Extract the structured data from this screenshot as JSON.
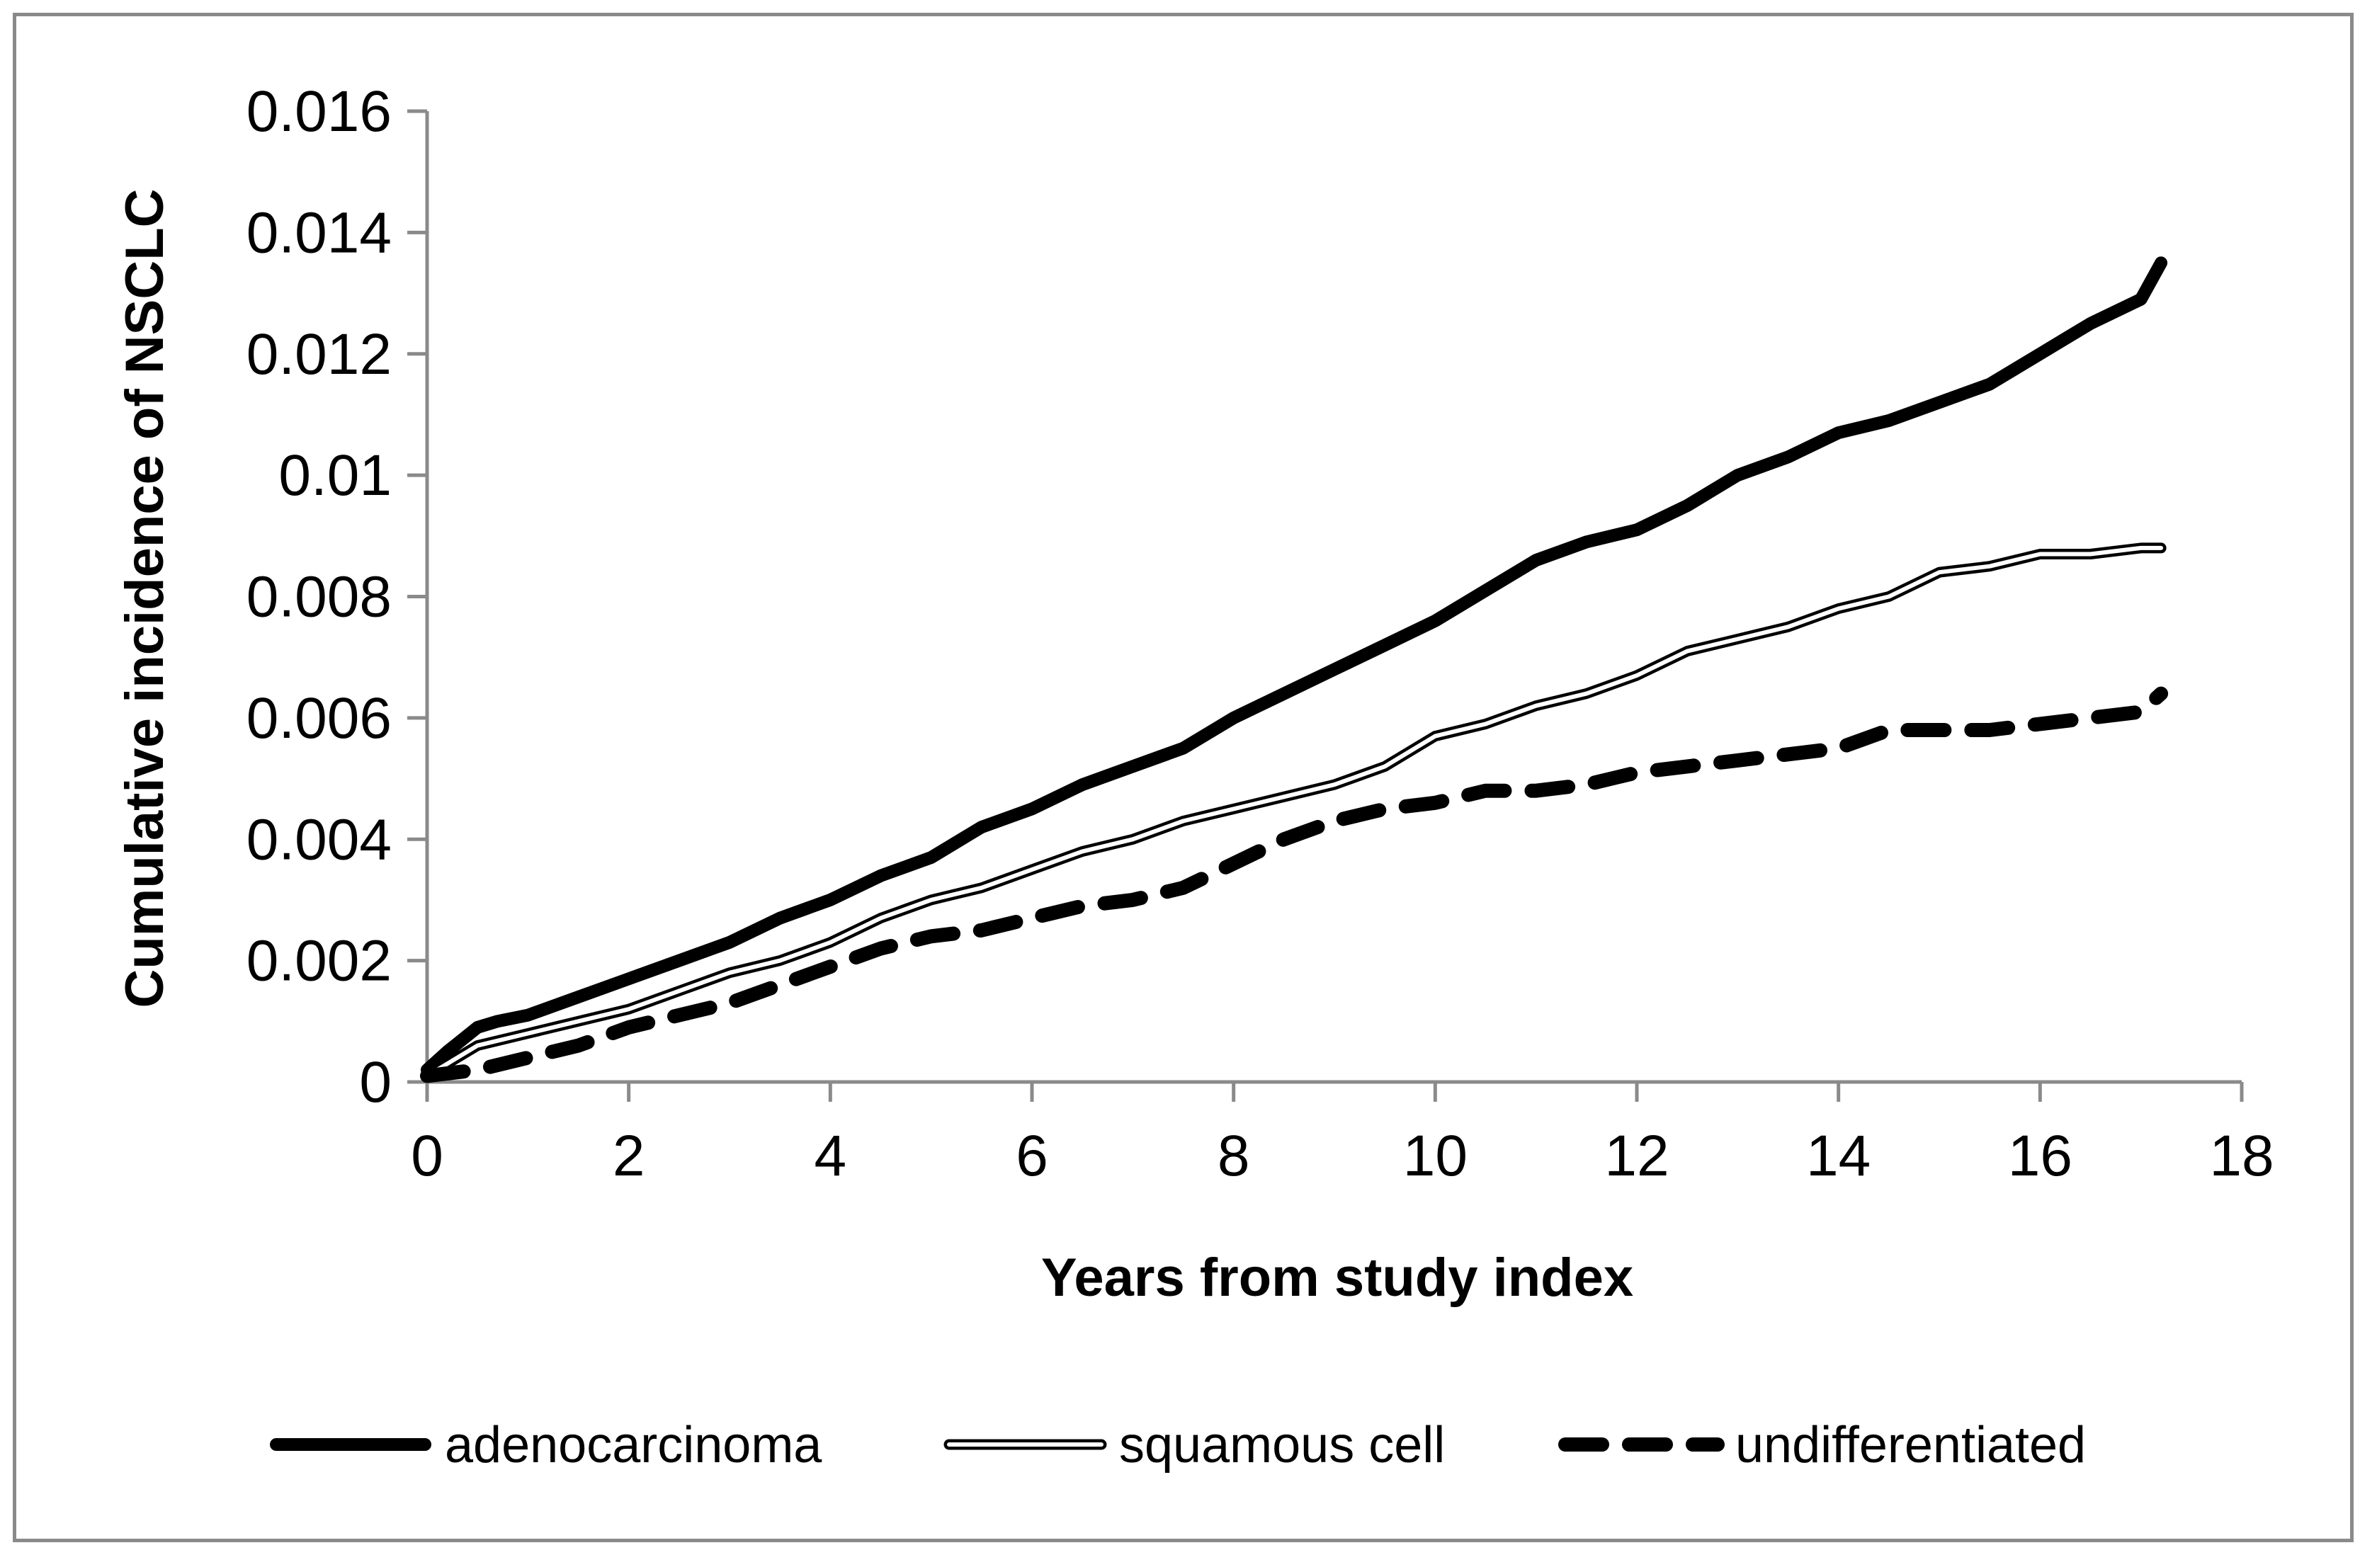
{
  "chart_data": {
    "type": "line",
    "title": "",
    "xlabel": "Years from study index",
    "ylabel": "Cumulative incidence of NSCLC",
    "xlim": [
      0,
      18
    ],
    "ylim": [
      0,
      0.016
    ],
    "x_ticks": [
      "0",
      "2",
      "4",
      "6",
      "8",
      "10",
      "12",
      "14",
      "16",
      "18"
    ],
    "y_ticks": [
      "0",
      "0.002",
      "0.004",
      "0.006",
      "0.008",
      "0.01",
      "0.012",
      "0.014",
      "0.016"
    ],
    "grid": false,
    "legend_position": "bottom",
    "series": [
      {
        "name": "adenocarcinoma",
        "style": "thick-solid",
        "color": "#000000",
        "x": [
          0,
          0.2,
          0.5,
          0.7,
          1,
          1.5,
          2,
          2.5,
          3,
          3.5,
          4,
          4.5,
          5,
          5.5,
          6,
          6.5,
          7,
          7.5,
          8,
          8.5,
          9,
          9.5,
          10,
          10.5,
          11,
          11.5,
          12,
          12.5,
          13,
          13.5,
          14,
          14.5,
          15,
          15.5,
          16,
          16.5,
          17,
          17.2
        ],
        "values": [
          0.0002,
          0.0005,
          0.0009,
          0.001,
          0.0011,
          0.0014,
          0.0017,
          0.002,
          0.0023,
          0.0027,
          0.003,
          0.0034,
          0.0037,
          0.0042,
          0.0045,
          0.0049,
          0.0052,
          0.0055,
          0.006,
          0.0064,
          0.0068,
          0.0072,
          0.0076,
          0.0081,
          0.0086,
          0.0089,
          0.0091,
          0.0095,
          0.01,
          0.0103,
          0.0107,
          0.0109,
          0.0112,
          0.0115,
          0.012,
          0.0125,
          0.0129,
          0.0135
        ]
      },
      {
        "name": "squamous cell",
        "style": "double-line",
        "color": "#000000",
        "x": [
          0,
          0.5,
          1,
          1.5,
          2,
          2.5,
          3,
          3.5,
          4,
          4.5,
          5,
          5.5,
          6,
          6.5,
          7,
          7.5,
          8,
          8.5,
          9,
          9.5,
          10,
          10.5,
          11,
          11.5,
          12,
          12.5,
          13,
          13.5,
          14,
          14.5,
          15,
          15.5,
          16,
          16.5,
          17,
          17.2
        ],
        "values": [
          0.0001,
          0.0006,
          0.0008,
          0.001,
          0.0012,
          0.0015,
          0.0018,
          0.002,
          0.0023,
          0.0027,
          0.003,
          0.0032,
          0.0035,
          0.0038,
          0.004,
          0.0043,
          0.0045,
          0.0047,
          0.0049,
          0.0052,
          0.0057,
          0.0059,
          0.0062,
          0.0064,
          0.0067,
          0.0071,
          0.0073,
          0.0075,
          0.0078,
          0.008,
          0.0084,
          0.0085,
          0.0087,
          0.0087,
          0.0088,
          0.0088
        ]
      },
      {
        "name": "undifferentiated",
        "style": "thick-dashed",
        "color": "#000000",
        "x": [
          0,
          0.5,
          1,
          1.5,
          2,
          2.5,
          3,
          3.5,
          4,
          4.5,
          5,
          5.5,
          6,
          6.5,
          7,
          7.5,
          8,
          8.5,
          9,
          9.5,
          10,
          10.5,
          11,
          11.5,
          12,
          12.5,
          13,
          13.5,
          14,
          14.5,
          15,
          15.5,
          16,
          16.5,
          17,
          17.2
        ],
        "values": [
          0.0001,
          0.0002,
          0.0004,
          0.0006,
          0.0009,
          0.0011,
          0.0013,
          0.0016,
          0.0019,
          0.0022,
          0.0024,
          0.0025,
          0.0027,
          0.0029,
          0.003,
          0.0032,
          0.0036,
          0.004,
          0.0043,
          0.0045,
          0.0046,
          0.0048,
          0.0048,
          0.0049,
          0.0051,
          0.0052,
          0.0053,
          0.0054,
          0.0055,
          0.0058,
          0.0058,
          0.0058,
          0.0059,
          0.006,
          0.0061,
          0.0064
        ]
      }
    ]
  }
}
